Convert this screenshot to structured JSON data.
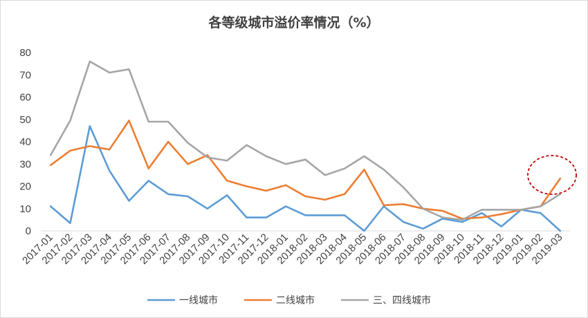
{
  "chart_data": {
    "type": "line",
    "title": "各等级城市溢价率情况（%）",
    "xlabel": "",
    "ylabel": "",
    "ylim": [
      0,
      80
    ],
    "yticks": [
      "0",
      "10",
      "20",
      "30",
      "40",
      "50",
      "60",
      "70",
      "80"
    ],
    "grid": false,
    "legend_position": "bottom",
    "categories": [
      "2017-01",
      "2017-02",
      "2017-03",
      "2017-04",
      "2017-05",
      "2017-06",
      "2017-07",
      "2017-08",
      "2017-09",
      "2017-10",
      "2017-11",
      "2017-12",
      "2018-01",
      "2018-02",
      "2018-03",
      "2018-04",
      "2018-05",
      "2018-06",
      "2018-07",
      "2018-08",
      "2018-09",
      "2018-10",
      "2018-11",
      "2018-12",
      "2019-01",
      "2019-02",
      "2019-03"
    ],
    "series": [
      {
        "name": "一线城市",
        "color": "#5b9bd5",
        "values": [
          11,
          3.5,
          47,
          27,
          13.5,
          22.5,
          16.5,
          15.5,
          10,
          16,
          6,
          6,
          11,
          7,
          7,
          7,
          0,
          11,
          4,
          1,
          5.5,
          4,
          8,
          2,
          9.5,
          8,
          0
        ]
      },
      {
        "name": "二线城市",
        "color": "#ed7d31",
        "values": [
          29.5,
          36,
          38,
          36.5,
          49.5,
          28,
          40,
          30,
          34,
          22.5,
          20,
          18,
          20.5,
          15.5,
          14,
          16.5,
          27.5,
          11.5,
          12,
          10,
          9,
          5.5,
          6,
          7.5,
          9.5,
          11,
          23.5
        ]
      },
      {
        "name": "三、四线城市",
        "color": "#a5a5a5",
        "values": [
          34,
          49.5,
          76,
          71,
          72.5,
          49,
          49,
          39.5,
          33,
          31.5,
          38.5,
          33.5,
          30,
          32,
          25,
          28,
          33.5,
          27.5,
          19.5,
          10,
          6,
          5,
          9.5,
          9.5,
          9.5,
          11,
          16.5
        ]
      }
    ],
    "annotations": [
      {
        "shape": "dashed-circle",
        "color": "#c00000",
        "around": "2019-02 to 2019-03 upturn"
      }
    ]
  }
}
